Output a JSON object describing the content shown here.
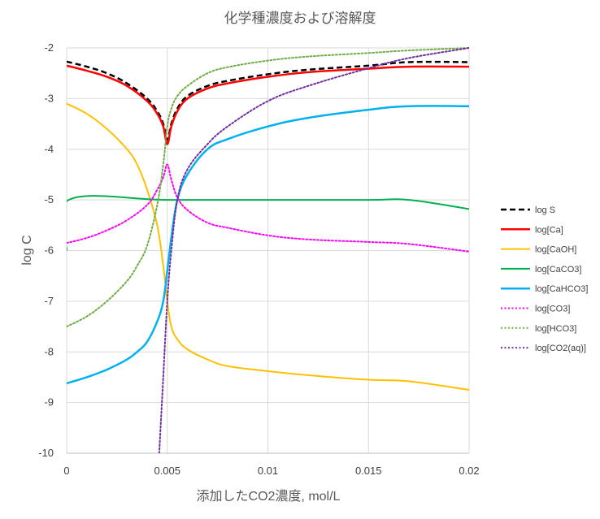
{
  "chart_data": {
    "type": "line",
    "title": "化学種濃度および溶解度",
    "xlabel": "添加したCO2濃度, mol/L",
    "ylabel": "log C",
    "xlim": [
      0,
      0.02
    ],
    "ylim": [
      -10,
      -2
    ],
    "xticks": [
      "0",
      "0.005",
      "0.01",
      "0.015",
      "0.02"
    ],
    "yticks": [
      "-2",
      "-3",
      "-4",
      "-5",
      "-6",
      "-7",
      "-8",
      "-9",
      "-10"
    ],
    "grid": "vertical and horizontal major gridlines",
    "legend_position": "right",
    "series": [
      {
        "name": "log S",
        "color": "#000000",
        "dash": "dashed",
        "width": 2.5,
        "x": [
          0,
          0.001,
          0.002,
          0.003,
          0.004,
          0.0045,
          0.0048,
          0.005,
          0.0052,
          0.0055,
          0.006,
          0.007,
          0.008,
          0.01,
          0.012,
          0.015,
          0.017,
          0.02
        ],
        "y": [
          -2.27,
          -2.37,
          -2.5,
          -2.7,
          -3.0,
          -3.25,
          -3.5,
          -3.82,
          -3.5,
          -3.2,
          -2.95,
          -2.75,
          -2.65,
          -2.52,
          -2.43,
          -2.35,
          -2.28,
          -2.28
        ]
      },
      {
        "name": "log[Ca]",
        "color": "#ff0000",
        "dash": "solid",
        "width": 2.5,
        "x": [
          0,
          0.001,
          0.002,
          0.003,
          0.004,
          0.0045,
          0.0048,
          0.005,
          0.0052,
          0.0055,
          0.006,
          0.007,
          0.008,
          0.01,
          0.012,
          0.015,
          0.017,
          0.02
        ],
        "y": [
          -2.35,
          -2.45,
          -2.57,
          -2.75,
          -3.05,
          -3.3,
          -3.55,
          -3.9,
          -3.55,
          -3.25,
          -3.0,
          -2.8,
          -2.7,
          -2.57,
          -2.48,
          -2.41,
          -2.37,
          -2.37
        ]
      },
      {
        "name": "log[CaOH]",
        "color": "#ffc000",
        "dash": "solid",
        "width": 2,
        "x": [
          0,
          0.001,
          0.002,
          0.003,
          0.0035,
          0.004,
          0.0045,
          0.0048,
          0.005,
          0.0052,
          0.0055,
          0.006,
          0.007,
          0.008,
          0.01,
          0.012,
          0.015,
          0.017,
          0.02
        ],
        "y": [
          -3.1,
          -3.3,
          -3.6,
          -4.0,
          -4.3,
          -4.8,
          -5.5,
          -6.3,
          -7.0,
          -7.5,
          -7.75,
          -7.95,
          -8.15,
          -8.28,
          -8.38,
          -8.46,
          -8.55,
          -8.58,
          -8.75
        ]
      },
      {
        "name": "log[CaCO3]",
        "color": "#00b050",
        "dash": "solid",
        "width": 2,
        "x": [
          0,
          0.0001,
          0.005,
          0.01,
          0.015,
          0.017,
          0.02
        ],
        "y": [
          -6.0,
          -5.0,
          -5.0,
          -5.0,
          -5.0,
          -5.0,
          -5.18
        ]
      },
      {
        "name": "log[CaHCO3]",
        "color": "#00b0f0",
        "dash": "solid",
        "width": 2.5,
        "x": [
          0,
          0.001,
          0.002,
          0.003,
          0.0035,
          0.004,
          0.0045,
          0.0048,
          0.005,
          0.0052,
          0.0055,
          0.006,
          0.007,
          0.008,
          0.01,
          0.012,
          0.015,
          0.017,
          0.02
        ],
        "y": [
          -8.62,
          -8.5,
          -8.35,
          -8.15,
          -8.0,
          -7.8,
          -7.4,
          -7.0,
          -6.4,
          -5.75,
          -5.0,
          -4.5,
          -4.0,
          -3.8,
          -3.55,
          -3.38,
          -3.22,
          -3.15,
          -3.15
        ]
      },
      {
        "name": "log[CO3]",
        "color": "#ff00ff",
        "dash": "dotted",
        "width": 2,
        "x": [
          0,
          0.001,
          0.002,
          0.003,
          0.004,
          0.0045,
          0.0048,
          0.005,
          0.0052,
          0.0055,
          0.006,
          0.007,
          0.008,
          0.01,
          0.012,
          0.015,
          0.017,
          0.02
        ],
        "y": [
          -5.85,
          -5.75,
          -5.6,
          -5.4,
          -5.1,
          -4.8,
          -4.55,
          -4.3,
          -4.6,
          -4.95,
          -5.2,
          -5.45,
          -5.55,
          -5.7,
          -5.78,
          -5.83,
          -5.87,
          -6.02
        ]
      },
      {
        "name": "log[HCO3]",
        "color": "#70ad47",
        "dash": "dotted",
        "width": 2,
        "x": [
          0,
          0.001,
          0.002,
          0.003,
          0.0035,
          0.004,
          0.0045,
          0.0048,
          0.005,
          0.0052,
          0.0055,
          0.006,
          0.007,
          0.008,
          0.01,
          0.012,
          0.015,
          0.017,
          0.02
        ],
        "y": [
          -7.5,
          -7.3,
          -7.0,
          -6.6,
          -6.3,
          -5.9,
          -5.1,
          -4.3,
          -3.55,
          -3.2,
          -2.95,
          -2.75,
          -2.5,
          -2.38,
          -2.25,
          -2.17,
          -2.1,
          -2.05,
          -2.0
        ]
      },
      {
        "name": "log[CO2(aq)]",
        "color": "#7030a0",
        "dash": "dotted",
        "width": 2,
        "x": [
          0.0046,
          0.0048,
          0.005,
          0.0052,
          0.0055,
          0.006,
          0.007,
          0.008,
          0.01,
          0.012,
          0.015,
          0.017,
          0.02
        ],
        "y": [
          -10.0,
          -8.5,
          -7.0,
          -6.0,
          -5.0,
          -4.4,
          -3.9,
          -3.55,
          -3.05,
          -2.75,
          -2.4,
          -2.2,
          -2.0
        ]
      }
    ]
  }
}
